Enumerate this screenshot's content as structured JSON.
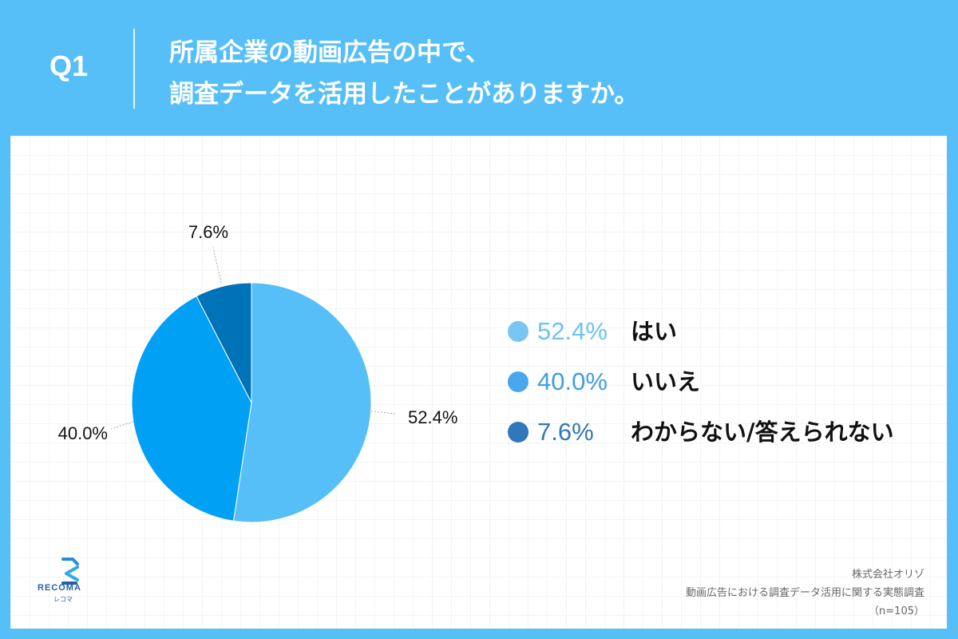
{
  "header": {
    "q_label": "Q1",
    "question_line1": "所属企業の動画広告の中で、",
    "question_line2": "調査データを活用したことがありますか。"
  },
  "chart_data": {
    "type": "pie",
    "slices": [
      {
        "label": "はい",
        "value": 52.4,
        "value_label": "52.4%",
        "color": "#56bff8"
      },
      {
        "label": "いいえ",
        "value": 40.0,
        "value_label": "40.0%",
        "color": "#00a0f5"
      },
      {
        "label": "わからない/答えられない",
        "value": 7.6,
        "value_label": "7.6%",
        "color": "#0072b8"
      }
    ],
    "legend": [
      {
        "value_label": "52.4%",
        "label": "はい",
        "dot_color": "#79c6f3",
        "text_color": "#6cc3f2"
      },
      {
        "value_label": "40.0%",
        "label": "いいえ",
        "dot_color": "#4aa7ef",
        "text_color": "#3f9de3"
      },
      {
        "value_label": "7.6%",
        "label": "わからない/答えられない",
        "dot_color": "#2f78bb",
        "text_color": "#2f78bb"
      }
    ],
    "start": "top",
    "direction": "clockwise",
    "legend_position": "right"
  },
  "logo": {
    "name": "RECOMA",
    "sub": "レコマ"
  },
  "source": {
    "company": "株式会社オリゾ",
    "survey": "動画広告における調査データ活用に関する実態調査",
    "sample": "（n=105）"
  }
}
